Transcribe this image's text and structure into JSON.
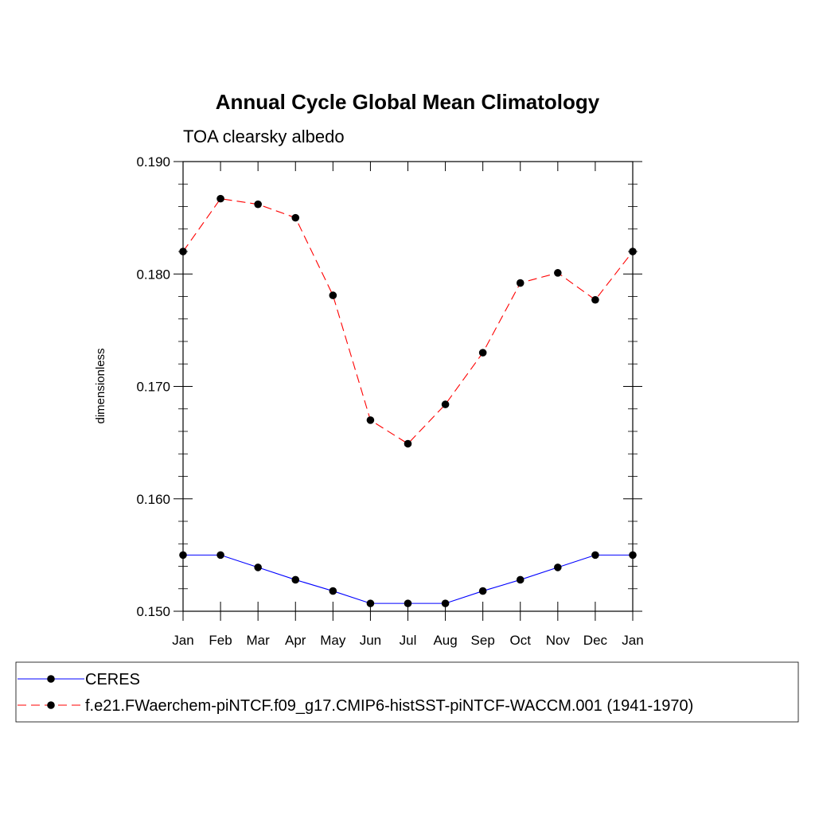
{
  "chart_data": {
    "type": "line",
    "title": "Annual Cycle Global Mean Climatology",
    "subtitle": "TOA clearsky albedo",
    "xlabel": "",
    "ylabel": "dimensionless",
    "categories": [
      "Jan",
      "Feb",
      "Mar",
      "Apr",
      "May",
      "Jun",
      "Jul",
      "Aug",
      "Sep",
      "Oct",
      "Nov",
      "Dec",
      "Jan"
    ],
    "ylim": [
      0.15,
      0.19
    ],
    "yticks": [
      0.15,
      0.16,
      0.17,
      0.18,
      0.19
    ],
    "ytick_labels": [
      "0.150",
      "0.160",
      "0.170",
      "0.180",
      "0.190"
    ],
    "legend_position": "bottom",
    "series": [
      {
        "name": "CERES",
        "color": "#0000ff",
        "dash": "solid",
        "values": [
          0.155,
          0.155,
          0.1539,
          0.1528,
          0.1518,
          0.1507,
          0.1507,
          0.1507,
          0.1518,
          0.1528,
          0.1539,
          0.155,
          0.155
        ]
      },
      {
        "name": "f.e21.FWaerchem-piNTCF.f09_g17.CMIP6-histSST-piNTCF-WACCM.001 (1941-1970)",
        "color": "#ff0000",
        "dash": "dashed",
        "values": [
          0.182,
          0.1867,
          0.1862,
          0.185,
          0.1781,
          0.167,
          0.1649,
          0.1684,
          0.173,
          0.1792,
          0.1801,
          0.1777,
          0.182
        ]
      }
    ]
  }
}
